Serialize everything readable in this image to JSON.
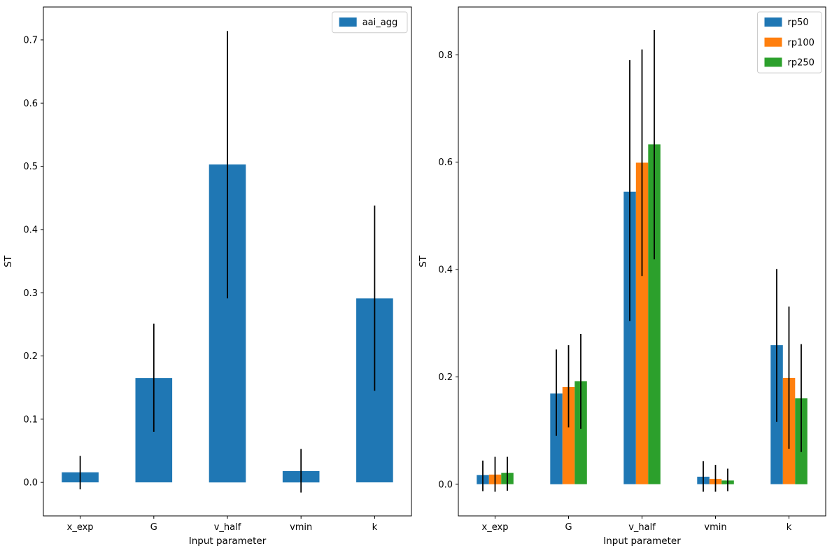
{
  "figure": {
    "background": "#ffffff",
    "errorbar_color": "#000000",
    "spine_color": "#000000",
    "legend_border_color": "#cccccc",
    "legend_background": "#ffffff"
  },
  "chart_data": [
    {
      "id": "left",
      "type": "bar",
      "title": "",
      "xlabel": "Input parameter",
      "ylabel": "ST",
      "categories": [
        "x_exp",
        "G",
        "v_half",
        "vmin",
        "k"
      ],
      "series": [
        {
          "name": "aai_agg",
          "color": "#1f77b4",
          "values": [
            0.016,
            0.165,
            0.503,
            0.018,
            0.291
          ],
          "err_low": [
            -0.011,
            0.08,
            0.291,
            -0.016,
            0.145
          ],
          "err_high": [
            0.042,
            0.251,
            0.714,
            0.053,
            0.438
          ]
        }
      ],
      "ylim": [
        -0.053,
        0.752
      ],
      "yticks": [
        0.0,
        0.1,
        0.2,
        0.3,
        0.4,
        0.5,
        0.6,
        0.7
      ],
      "ytick_labels": [
        "0.0",
        "0.1",
        "0.2",
        "0.3",
        "0.4",
        "0.5",
        "0.6",
        "0.7"
      ],
      "legend_position": "upper right",
      "grid": false,
      "bar_group_fraction": 0.5
    },
    {
      "id": "right",
      "type": "bar",
      "title": "",
      "xlabel": "Input parameter",
      "ylabel": "ST",
      "categories": [
        "x_exp",
        "G",
        "v_half",
        "vmin",
        "k"
      ],
      "series": [
        {
          "name": "rp50",
          "color": "#1f77b4",
          "values": [
            0.017,
            0.169,
            0.545,
            0.014,
            0.259
          ],
          "err_low": [
            -0.013,
            0.09,
            0.304,
            -0.014,
            0.116
          ],
          "err_high": [
            0.044,
            0.251,
            0.79,
            0.043,
            0.401
          ]
        },
        {
          "name": "rp100",
          "color": "#ff7f0e",
          "values": [
            0.018,
            0.181,
            0.599,
            0.01,
            0.198
          ],
          "err_low": [
            -0.014,
            0.106,
            0.388,
            -0.014,
            0.066
          ],
          "err_high": [
            0.051,
            0.259,
            0.81,
            0.036,
            0.331
          ]
        },
        {
          "name": "rp250",
          "color": "#2ca02c",
          "values": [
            0.021,
            0.192,
            0.633,
            0.007,
            0.16
          ],
          "err_low": [
            -0.012,
            0.103,
            0.419,
            -0.013,
            0.06
          ],
          "err_high": [
            0.051,
            0.28,
            0.846,
            0.029,
            0.261
          ]
        }
      ],
      "ylim": [
        -0.059,
        0.889
      ],
      "yticks": [
        0.0,
        0.2,
        0.4,
        0.6,
        0.8
      ],
      "ytick_labels": [
        "0.0",
        "0.2",
        "0.4",
        "0.6",
        "0.8"
      ],
      "legend_position": "upper right",
      "grid": false,
      "bar_group_fraction": 0.5
    }
  ]
}
